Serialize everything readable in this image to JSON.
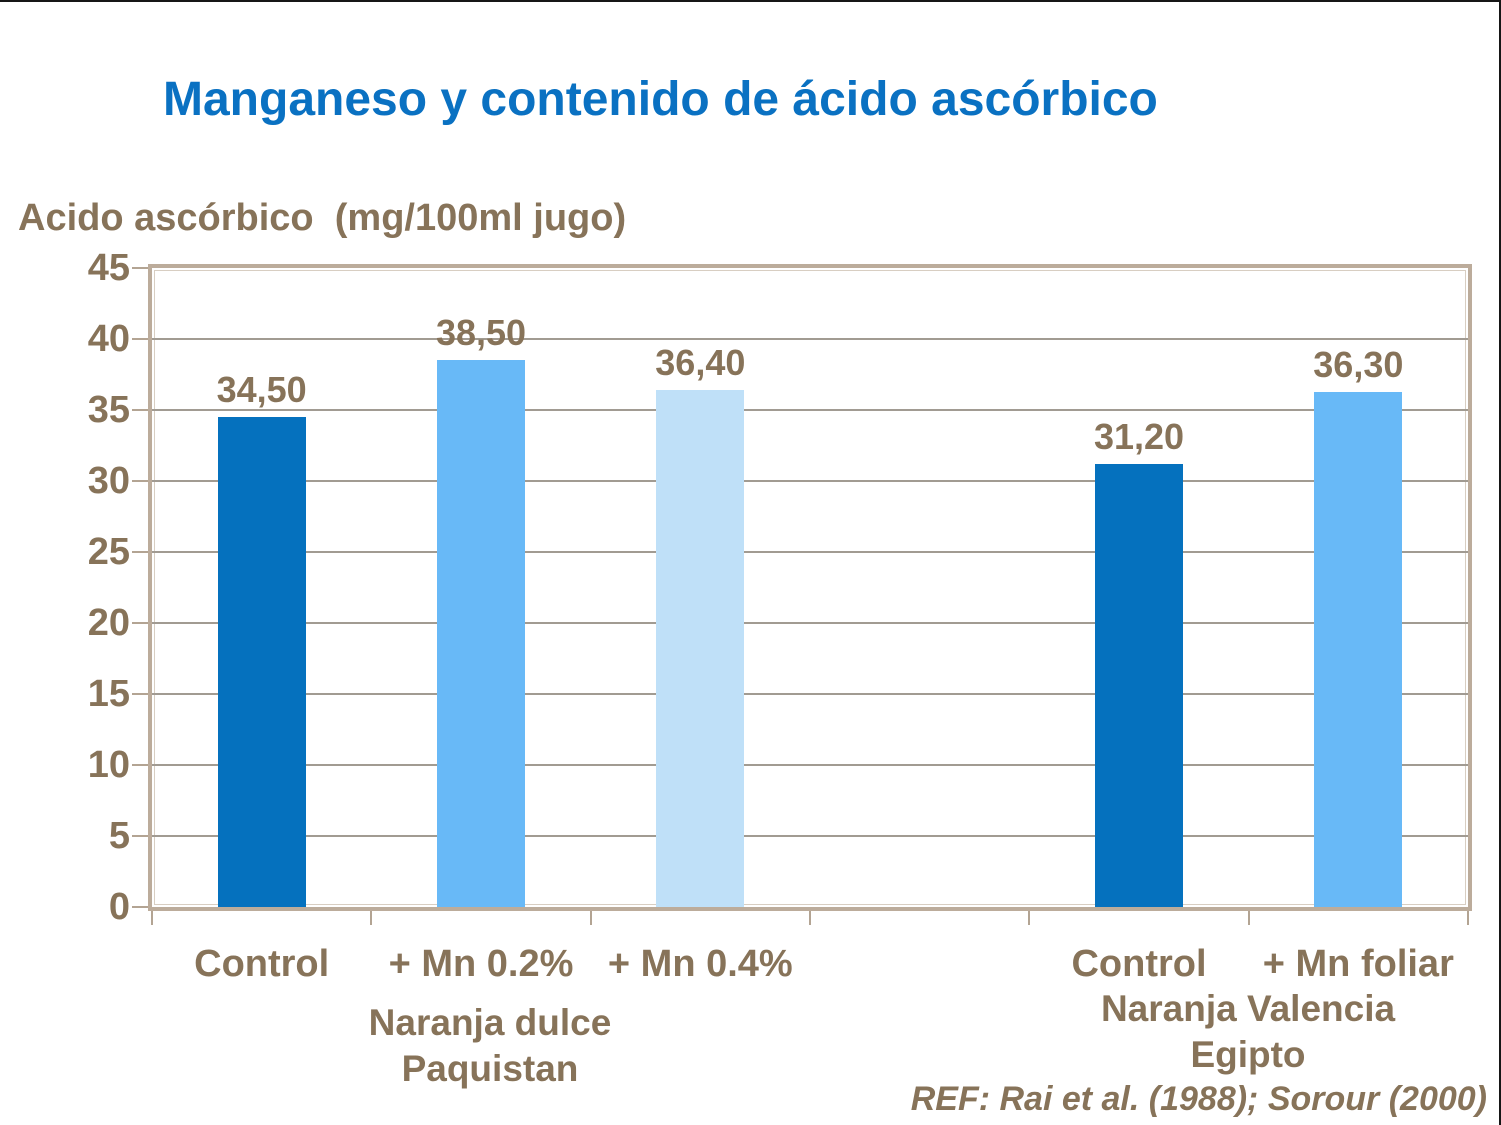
{
  "chart_data": {
    "type": "bar",
    "title": "Manganeso y contenido de ácido ascórbico",
    "y_axis_title": "Acido ascórbico  (mg/100ml jugo)",
    "ylim": [
      0,
      45
    ],
    "y_tick_step": 5,
    "y_ticks": [
      45,
      40,
      35,
      30,
      25,
      20,
      15,
      10,
      5,
      0
    ],
    "grid": true,
    "slots": 6,
    "bars": [
      {
        "slot": 0,
        "label": "Control",
        "value": 34.5,
        "value_label": "34,50",
        "color": "#0571BE"
      },
      {
        "slot": 1,
        "label": "+ Mn 0.2%",
        "value": 38.5,
        "value_label": "38,50",
        "color": "#68B9F7"
      },
      {
        "slot": 2,
        "label": "+ Mn 0.4%",
        "value": 36.4,
        "value_label": "36,40",
        "color": "#BFE0F8"
      },
      {
        "slot": 4,
        "label": "Control",
        "value": 31.2,
        "value_label": "31,20",
        "color": "#0571BE"
      },
      {
        "slot": 5,
        "label": "+ Mn foliar",
        "value": 36.3,
        "value_label": "36,30",
        "color": "#68B9F7"
      }
    ],
    "groups": [
      {
        "line1": "Naranja dulce",
        "line2": "Paquistan"
      },
      {
        "line1": "Naranja Valencia",
        "line2": "Egipto"
      }
    ],
    "reference": "REF: Rai et al. (1988); Sorour (2000)",
    "colors": {
      "title": "#0A71C2",
      "label_text": "#877359",
      "bar_dark_blue": "#0571BE",
      "bar_medium_blue": "#68B9F7",
      "bar_light_blue": "#BFE0F8",
      "axis_border": "#BCAC9B",
      "gridline": "#A19B92"
    }
  }
}
